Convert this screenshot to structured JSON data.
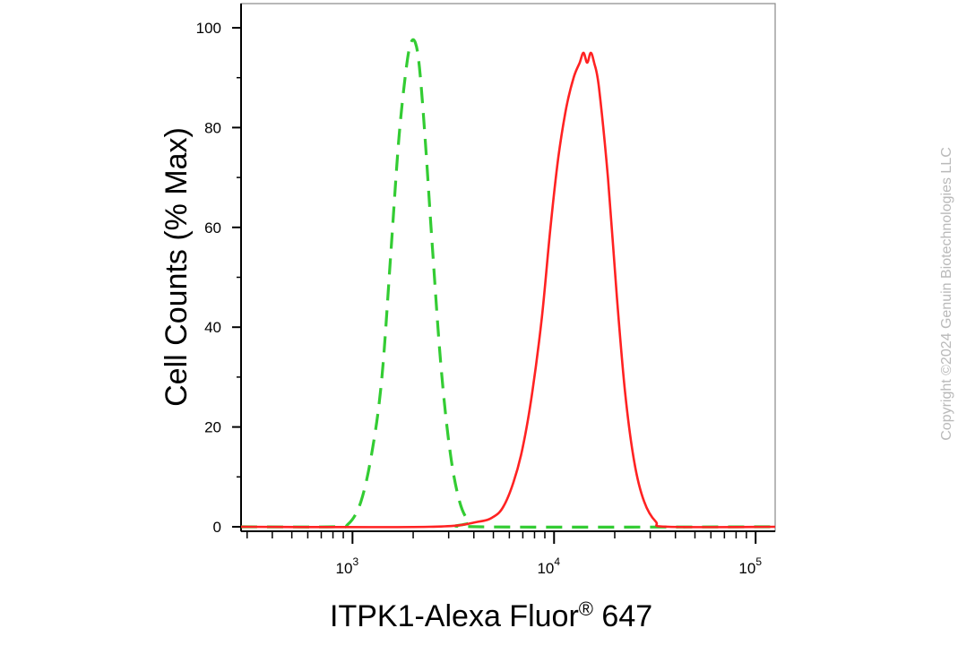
{
  "chart_data": {
    "type": "line",
    "title": "",
    "xlabel": "ITPK1-Alexa Fluor® 647",
    "ylabel": "Cell Counts (% Max)",
    "x_scale": "log",
    "xlim": [
      280,
      125000
    ],
    "ylim": [
      0,
      105
    ],
    "y_ticks": [
      "0",
      "20",
      "40",
      "60",
      "80",
      "100"
    ],
    "y_tick_values": [
      0,
      20,
      40,
      60,
      80,
      100
    ],
    "x_ticks": [
      {
        "value": 1000,
        "base": "10",
        "exp": "3"
      },
      {
        "value": 10000,
        "base": "10",
        "exp": "4"
      },
      {
        "value": 100000,
        "base": "10",
        "exp": "5"
      }
    ],
    "grid": false,
    "legend": "none",
    "series": [
      {
        "color": "#33cc33",
        "style": "dashed",
        "points": [
          [
            280,
            0
          ],
          [
            800,
            0
          ],
          [
            950,
            0.5
          ],
          [
            1100,
            5
          ],
          [
            1250,
            15
          ],
          [
            1400,
            30
          ],
          [
            1550,
            55
          ],
          [
            1700,
            78
          ],
          [
            1850,
            92
          ],
          [
            1950,
            97
          ],
          [
            2050,
            97
          ],
          [
            2150,
            92
          ],
          [
            2300,
            77
          ],
          [
            2500,
            55
          ],
          [
            2750,
            32
          ],
          [
            3050,
            15
          ],
          [
            3400,
            5
          ],
          [
            3800,
            1
          ],
          [
            4300,
            0
          ],
          [
            125000,
            0
          ]
        ]
      },
      {
        "color": "#ff2222",
        "style": "solid",
        "points": [
          [
            280,
            0
          ],
          [
            2400,
            0
          ],
          [
            4200,
            1
          ],
          [
            5000,
            2
          ],
          [
            5600,
            4
          ],
          [
            6300,
            9
          ],
          [
            7000,
            16
          ],
          [
            7800,
            27
          ],
          [
            8700,
            42
          ],
          [
            9600,
            60
          ],
          [
            10500,
            74
          ],
          [
            11500,
            84
          ],
          [
            12500,
            90
          ],
          [
            13400,
            93
          ],
          [
            14000,
            95
          ],
          [
            14600,
            93
          ],
          [
            15200,
            95
          ],
          [
            15800,
            93
          ],
          [
            16700,
            88
          ],
          [
            18500,
            70
          ],
          [
            20500,
            46
          ],
          [
            22500,
            27
          ],
          [
            25000,
            13
          ],
          [
            28000,
            5
          ],
          [
            32000,
            1
          ],
          [
            37000,
            0
          ],
          [
            125000,
            0
          ]
        ]
      }
    ]
  },
  "watermark": "Copyright ©2024 Genuin Biotechnologies LLC",
  "colors": {
    "axis": "#000000",
    "frame": "#888888",
    "watermark": "#b9b9b9"
  }
}
